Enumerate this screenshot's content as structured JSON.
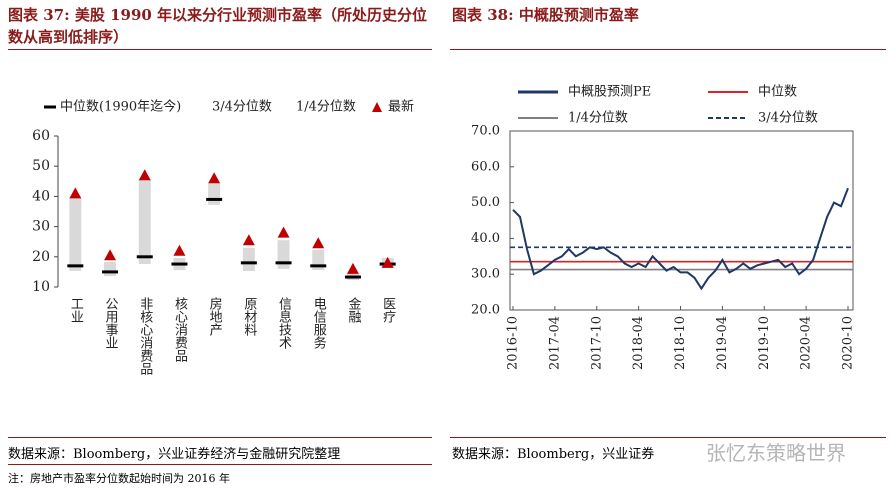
{
  "chart_data": [
    {
      "type": "range",
      "title": "图表 37: 美股 1990 年以来分行业预测市盈率（所处历史分位数从高到低排序）",
      "categories": [
        "工业",
        "公用事业",
        "非核心消费品",
        "核心消费品",
        "房地产",
        "原材料",
        "信息技术",
        "电信服务",
        "金融",
        "医疗"
      ],
      "series": [
        {
          "name": "中位数(1990年迄今)",
          "color": "#000000",
          "values": [
            17,
            15,
            20,
            17.6,
            39,
            18,
            18,
            17,
            13.3,
            17.6
          ]
        },
        {
          "name": "3/4分位数",
          "color": "#d9d9d9",
          "values": [
            39.5,
            18.3,
            45.5,
            19.6,
            44.4,
            23,
            25.5,
            22.3,
            14.3,
            19.6
          ]
        },
        {
          "name": "1/4分位数",
          "color": "#d9d9d9",
          "values": [
            15.3,
            13.6,
            17.6,
            15.6,
            37.2,
            15.3,
            16,
            15.6,
            12.3,
            16.3
          ]
        },
        {
          "name": "最新",
          "color": "#c00000",
          "values": [
            41,
            20.5,
            47,
            22,
            46,
            25.5,
            28,
            24.5,
            16,
            18
          ]
        }
      ],
      "ylim": [
        10,
        60
      ],
      "yticks": [
        10,
        20,
        30,
        40,
        50,
        60
      ]
    },
    {
      "type": "line",
      "title": "图表 38: 中概股预测市盈率",
      "x": [
        "2016-10",
        "2016-11",
        "2016-12",
        "2017-01",
        "2017-02",
        "2017-03",
        "2017-04",
        "2017-05",
        "2017-06",
        "2017-07",
        "2017-08",
        "2017-09",
        "2017-10",
        "2017-11",
        "2017-12",
        "2018-01",
        "2018-02",
        "2018-03",
        "2018-04",
        "2018-05",
        "2018-06",
        "2018-07",
        "2018-08",
        "2018-09",
        "2018-10",
        "2018-11",
        "2018-12",
        "2019-01",
        "2019-02",
        "2019-03",
        "2019-04",
        "2019-05",
        "2019-06",
        "2019-07",
        "2019-08",
        "2019-09",
        "2019-10",
        "2019-11",
        "2019-12",
        "2020-01",
        "2020-02",
        "2020-03",
        "2020-04",
        "2020-05",
        "2020-06",
        "2020-07",
        "2020-08",
        "2020-09",
        "2020-10"
      ],
      "xticks": [
        "2016-10",
        "2017-04",
        "2017-10",
        "2018-04",
        "2018-10",
        "2019-04",
        "2019-10",
        "2020-04",
        "2020-10"
      ],
      "series": [
        {
          "name": "中概股预测PE",
          "color": "#1f3864",
          "values": [
            48,
            46,
            37,
            30,
            31,
            32.5,
            34,
            35,
            37,
            35,
            36,
            37.5,
            37,
            37.5,
            36,
            35,
            33,
            32,
            33,
            32,
            35,
            33,
            31,
            32,
            30.5,
            30.5,
            29,
            26,
            29,
            31,
            34,
            30.5,
            31.5,
            33,
            31.5,
            32.5,
            33,
            33.5,
            34,
            32,
            33,
            30,
            31.5,
            34,
            40,
            46,
            50,
            49,
            54
          ]
        }
      ],
      "hlines": [
        {
          "name": "中位数",
          "color": "#e02020",
          "value": 33.5,
          "style": "solid"
        },
        {
          "name": "1/4分位数",
          "color": "#808080",
          "value": 31.3,
          "style": "solid"
        },
        {
          "name": "3/4分位数",
          "color": "#1f3864",
          "value": 37.5,
          "style": "dashed"
        }
      ],
      "ylim": [
        20,
        70
      ],
      "yticks": [
        {
          "value": 20,
          "label": "20.0"
        },
        {
          "value": 30,
          "label": "30.0"
        },
        {
          "value": 40,
          "label": "40.0"
        },
        {
          "value": 50,
          "label": "50.0"
        },
        {
          "value": 60,
          "label": "60.0"
        },
        {
          "value": 70,
          "label": "70.0"
        }
      ]
    }
  ],
  "footer": {
    "left_source": "数据来源：Bloomberg，兴业证券经济与金融研究院整理",
    "note": "注：房地产市盈率分位数起始时间为 2016 年",
    "right_source": "数据来源：Bloomberg，兴业证券",
    "watermark": "张忆东策略世界"
  }
}
